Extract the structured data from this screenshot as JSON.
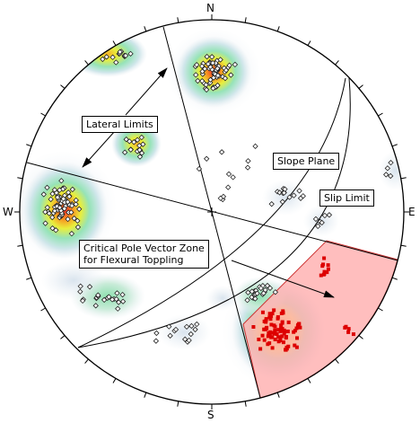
{
  "compass": {
    "north": "N",
    "south": "S",
    "east": "E",
    "west": "W"
  },
  "labels": {
    "lateral_limits": "Lateral Limits",
    "slope_plane": "Slope Plane",
    "slip_limit": "Slip Limit",
    "critical_zone_line1": "Critical Pole Vector Zone",
    "critical_zone_line2": "for Flexural Toppling"
  },
  "colors": {
    "critical_zone_fill": "#ffb3b3",
    "critical_zone_stroke": "#cc3333",
    "pole_critical": "#dd0000",
    "contour_low": "#e3ebf2",
    "contour_mid": "#9fe0bf",
    "contour_high": "#e8ec3a",
    "contour_peak": "#f0302a"
  }
}
